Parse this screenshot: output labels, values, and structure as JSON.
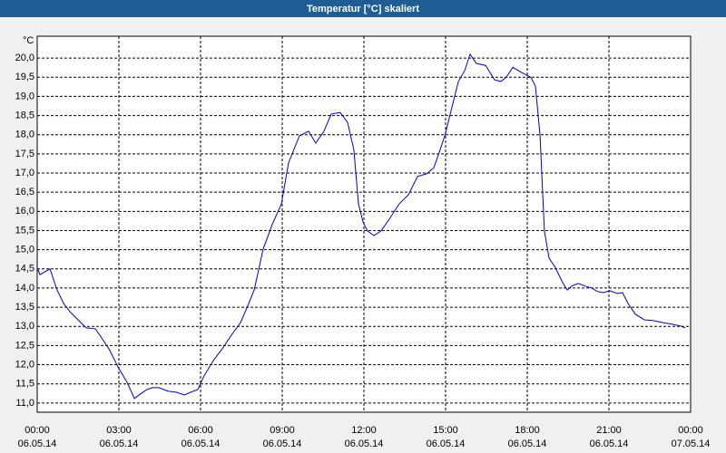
{
  "chart_data": {
    "type": "line",
    "title": "Temperatur [°C] skaliert",
    "y_unit_label": "°C",
    "x": [
      0,
      0.1,
      0.47,
      0.73,
      0.97,
      1.23,
      1.63,
      1.8,
      2.13,
      2.3,
      2.63,
      2.97,
      3.3,
      3.57,
      3.8,
      4.03,
      4.23,
      4.47,
      4.8,
      5.13,
      5.4,
      5.63,
      5.9,
      6.13,
      6.47,
      6.8,
      7.13,
      7.47,
      7.7,
      7.97,
      8.3,
      8.63,
      8.97,
      9.23,
      9.63,
      9.97,
      10.23,
      10.53,
      10.8,
      11.13,
      11.4,
      11.63,
      11.8,
      11.97,
      12.13,
      12.37,
      12.63,
      12.97,
      13.3,
      13.63,
      13.97,
      14.3,
      14.57,
      14.8,
      14.97,
      15.3,
      15.47,
      15.7,
      15.9,
      16.13,
      16.47,
      16.8,
      17.03,
      17.23,
      17.47,
      17.8,
      18.13,
      18.3,
      18.47,
      18.63,
      18.8,
      19.03,
      19.3,
      19.47,
      19.63,
      19.87,
      20.13,
      20.37,
      20.57,
      20.8,
      21.03,
      21.3,
      21.5,
      21.7,
      21.97,
      22.3,
      22.63,
      22.97,
      23.3,
      23.63,
      23.8
    ],
    "series": [
      {
        "name": "Temperatur",
        "color": "#0000cc",
        "values": [
          14.54,
          14.35,
          14.5,
          13.95,
          13.6,
          13.36,
          13.08,
          12.96,
          12.94,
          12.77,
          12.42,
          11.94,
          11.54,
          11.12,
          11.24,
          11.35,
          11.4,
          11.4,
          11.31,
          11.28,
          11.21,
          11.28,
          11.35,
          11.71,
          12.11,
          12.42,
          12.77,
          13.1,
          13.48,
          13.95,
          15.02,
          15.65,
          16.2,
          17.26,
          17.97,
          18.09,
          17.78,
          18.09,
          18.54,
          18.58,
          18.32,
          17.61,
          16.2,
          15.72,
          15.49,
          15.37,
          15.49,
          15.84,
          16.2,
          16.43,
          16.91,
          16.98,
          17.14,
          17.61,
          17.97,
          18.91,
          19.39,
          19.67,
          20.1,
          19.86,
          19.81,
          19.43,
          19.39,
          19.5,
          19.76,
          19.62,
          19.5,
          19.27,
          17.97,
          15.49,
          14.78,
          14.54,
          14.14,
          13.95,
          14.05,
          14.12,
          14.05,
          14.0,
          13.91,
          13.88,
          13.93,
          13.86,
          13.88,
          13.6,
          13.32,
          13.17,
          13.15,
          13.1,
          13.06,
          13.01,
          12.96
        ]
      }
    ],
    "xlim": [
      0,
      24
    ],
    "xticks": [
      {
        "value": 0,
        "label": "00:00"
      },
      {
        "value": 3,
        "label": "03:00"
      },
      {
        "value": 6,
        "label": "06:00"
      },
      {
        "value": 9,
        "label": "09:00"
      },
      {
        "value": 12,
        "label": "12:00"
      },
      {
        "value": 15,
        "label": "15:00"
      },
      {
        "value": 18,
        "label": "18:00"
      },
      {
        "value": 21,
        "label": "21:00"
      },
      {
        "value": 24,
        "label": "00:00"
      }
    ],
    "xtick_dates": [
      "06.05.14",
      "06.05.14",
      "06.05.14",
      "06.05.14",
      "06.05.14",
      "06.05.14",
      "06.05.14",
      "06.05.14",
      "07.05.14"
    ],
    "ylim": [
      10.76,
      20.57
    ],
    "yticks": [
      {
        "value": 11,
        "label": "11,0"
      },
      {
        "value": 11.5,
        "label": "11,5"
      },
      {
        "value": 12,
        "label": "12,0"
      },
      {
        "value": 12.5,
        "label": "12,5"
      },
      {
        "value": 13,
        "label": "13,0"
      },
      {
        "value": 13.5,
        "label": "13,5"
      },
      {
        "value": 14,
        "label": "14,0"
      },
      {
        "value": 14.5,
        "label": "14,5"
      },
      {
        "value": 15,
        "label": "15,0"
      },
      {
        "value": 15.5,
        "label": "15,5"
      },
      {
        "value": 16,
        "label": "16,0"
      },
      {
        "value": 16.5,
        "label": "16,5"
      },
      {
        "value": 17,
        "label": "17,0"
      },
      {
        "value": 17.5,
        "label": "17,5"
      },
      {
        "value": 18,
        "label": "18,0"
      },
      {
        "value": 18.5,
        "label": "18,5"
      },
      {
        "value": 19,
        "label": "19,0"
      },
      {
        "value": 19.5,
        "label": "19,5"
      },
      {
        "value": 20,
        "label": "20,0"
      }
    ],
    "grid": true
  }
}
